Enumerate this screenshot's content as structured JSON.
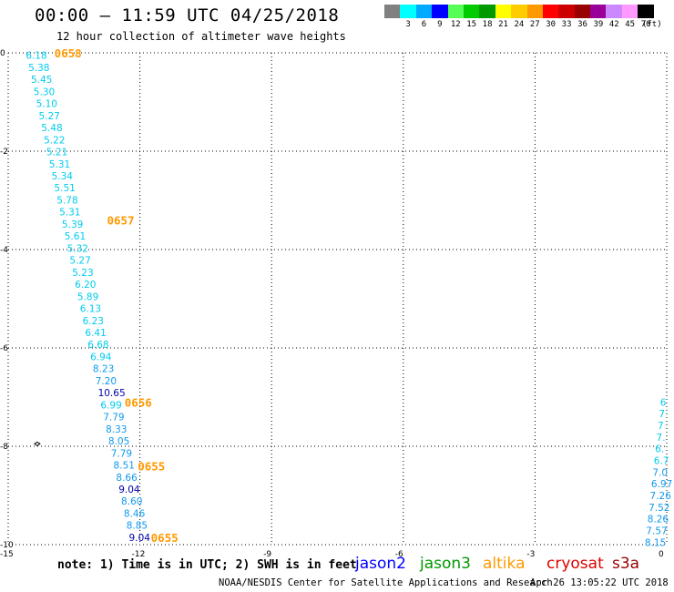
{
  "header": {
    "title": "00:00 – 11:59 UTC 04/25/2018",
    "subtitle": "12 hour collection of altimeter wave heights"
  },
  "legend": {
    "unit": "(ft)",
    "bins": [
      {
        "label": "",
        "color": "#808080"
      },
      {
        "label": "3",
        "color": "#00ffff"
      },
      {
        "label": "6",
        "color": "#00aaff"
      },
      {
        "label": "9",
        "color": "#0000ff"
      },
      {
        "label": "12",
        "color": "#55ff55"
      },
      {
        "label": "15",
        "color": "#00cc00"
      },
      {
        "label": "18",
        "color": "#009900"
      },
      {
        "label": "21",
        "color": "#ffff00"
      },
      {
        "label": "24",
        "color": "#ffcc00"
      },
      {
        "label": "27",
        "color": "#ff9900"
      },
      {
        "label": "30",
        "color": "#ff0000"
      },
      {
        "label": "33",
        "color": "#cc0000"
      },
      {
        "label": "36",
        "color": "#990000"
      },
      {
        "label": "39",
        "color": "#990099"
      },
      {
        "label": "42",
        "color": "#cc88ff"
      },
      {
        "label": "45",
        "color": "#ff99ff"
      },
      {
        "label": "70",
        "color": "#000000"
      }
    ]
  },
  "footer": {
    "note": "note: 1) Time is in UTC; 2) SWH is in feet",
    "credit": "NOAA/NESDIS Center for Satellite Applications and Research",
    "timestamp": "Apr 26 13:05:22 UTC 2018"
  },
  "satellites": [
    {
      "name": "jason2",
      "color": "#0000ff"
    },
    {
      "name": "jason3",
      "color": "#009900"
    },
    {
      "name": "altika",
      "color": "#ff9900"
    },
    {
      "name": "cryosat",
      "color": "#dd0000"
    },
    {
      "name": "s3a",
      "color": "#990000"
    }
  ],
  "chart_data": {
    "type": "scatter",
    "xlim": [
      -15,
      0
    ],
    "ylim": [
      -10,
      0
    ],
    "x_ticks": [
      "-15",
      "-12",
      "-9",
      "-6",
      "-3",
      "0"
    ],
    "y_ticks": [
      "0",
      "-2",
      "-4",
      "-6",
      "-8",
      "-10"
    ],
    "grid": true,
    "track_left": {
      "values": [
        "6.18",
        "5.38",
        "5.45",
        "5.30",
        "5.10",
        "5.27",
        "5.48",
        "5.22",
        "5.21",
        "5.31",
        "5.34",
        "5.51",
        "5.78",
        "5.31",
        "5.39",
        "5.61",
        "5.32",
        "5.27",
        "5.23",
        "6.20",
        "5.89",
        "6.13",
        "6.23",
        "6.41",
        "6.68",
        "6.94",
        "8.23",
        "7.20",
        "10.65",
        "6.99",
        "7.79",
        "8.33",
        "8.05",
        "7.79",
        "8.51",
        "8.66",
        "9.04",
        "8.60",
        "8.46",
        "8.85",
        "9.04"
      ],
      "colors": [
        "c",
        "c",
        "c",
        "c",
        "c",
        "c",
        "c",
        "c",
        "c",
        "c",
        "c",
        "c",
        "c",
        "c",
        "c",
        "c",
        "c",
        "c",
        "c",
        "c",
        "c",
        "c",
        "c",
        "c",
        "c",
        "c",
        "b",
        "b",
        "n",
        "c",
        "b",
        "b",
        "b",
        "b",
        "b",
        "b",
        "n",
        "b",
        "b",
        "b",
        "n"
      ]
    },
    "track_right": {
      "values": [
        "6",
        "7",
        "7",
        "7.",
        "6.",
        "6.7",
        "7.0",
        "6.97",
        "7.26",
        "7.52",
        "8.26",
        "7.57",
        "8.15"
      ]
    },
    "time_labels": [
      {
        "text": "0658",
        "lat": 0.0
      },
      {
        "text": "0657",
        "lat": -3.4
      },
      {
        "text": "0656",
        "lat": -7.1
      },
      {
        "text": "0655",
        "lat": -8.4
      },
      {
        "text": "0655",
        "lat": -9.85
      }
    ]
  }
}
